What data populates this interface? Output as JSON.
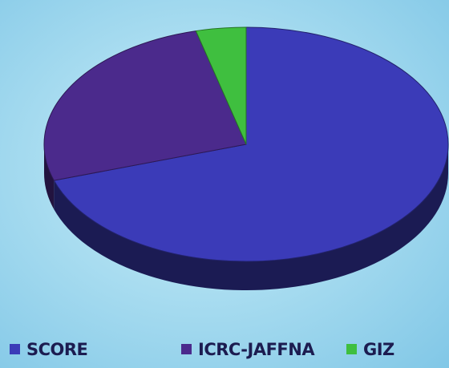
{
  "chart_data": {
    "type": "pie",
    "categories": [
      "SCORE",
      "ICRC-JAFFNA",
      "GIZ"
    ],
    "values": [
      70,
      26,
      4
    ],
    "colors": [
      "#3b3bb8",
      "#4b2a8c",
      "#3fbf3f"
    ],
    "legend": "bottom"
  }
}
